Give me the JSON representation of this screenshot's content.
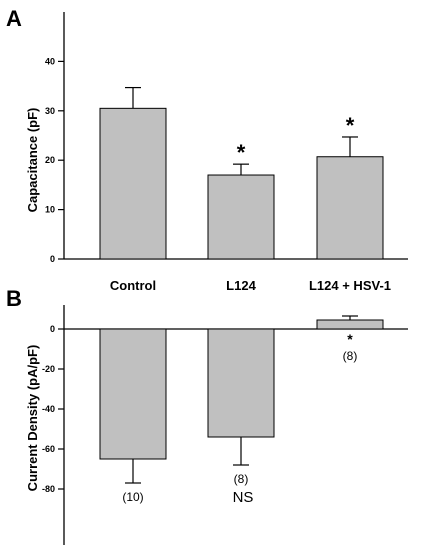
{
  "chart_data": [
    {
      "type": "bar",
      "panel": "A",
      "categories": [
        "Control",
        "L124",
        "L124 + HSV-1"
      ],
      "values": [
        30.5,
        17.0,
        20.7
      ],
      "errors": [
        4.2,
        2.2,
        4.0
      ],
      "annotations": [
        "",
        "*",
        "*"
      ],
      "ylabel": "Capacitance (pF)",
      "xlabel": "",
      "ylim": [
        0,
        50
      ],
      "yticks": [
        0,
        10,
        20,
        30,
        40
      ],
      "bar_color": "#c0c0c0",
      "grid": false
    },
    {
      "type": "bar",
      "panel": "B",
      "categories": [
        "Control",
        "L124",
        "L124 + HSV-1"
      ],
      "values": [
        -65,
        -54,
        4.5
      ],
      "errors": [
        12,
        14,
        2
      ],
      "annotations": [
        "(10)",
        "(8)",
        "(8)"
      ],
      "significance": [
        "",
        "",
        "*"
      ],
      "note": "NS",
      "ylabel": "Current Density (pA/pF)",
      "xlabel": "",
      "ylim": [
        -108,
        12
      ],
      "yticks": [
        0,
        -20,
        -40,
        -60,
        -80
      ],
      "bar_color": "#c0c0c0",
      "grid": false
    }
  ]
}
